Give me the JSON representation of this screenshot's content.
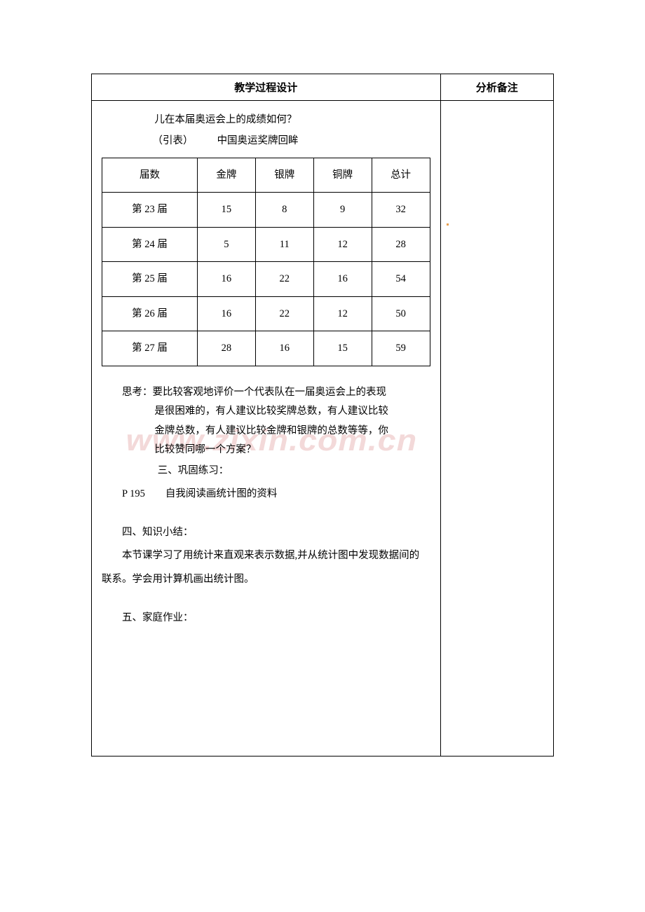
{
  "header": {
    "left": "教学过程设计",
    "right": "分析备注"
  },
  "intro": {
    "line1": "儿在本届奥运会上的成绩如何？",
    "yinbiao": "（引表）",
    "tableTitle": "中国奥运奖牌回眸"
  },
  "dataTable": {
    "columns": [
      "届数",
      "金牌",
      "银牌",
      "铜牌",
      "总计"
    ],
    "rows": [
      [
        "第 23 届",
        "15",
        "8",
        "9",
        "32"
      ],
      [
        "第 24 届",
        "5",
        "11",
        "12",
        "28"
      ],
      [
        "第 25 届",
        "16",
        "22",
        "16",
        "54"
      ],
      [
        "第 26 届",
        "16",
        "22",
        "12",
        "50"
      ],
      [
        "第 27 届",
        "28",
        "16",
        "15",
        "59"
      ]
    ]
  },
  "thinking": {
    "line1": "思考：要比较客观地评价一个代表队在一届奥运会上的表现",
    "line2": "是很困难的，有人建议比较奖牌总数，有人建议比较",
    "line3": "金牌总数，有人建议比较金牌和银牌的总数等等，你",
    "line4": "比较赞同哪一个方案？"
  },
  "section3": {
    "title": "三、巩固练习：",
    "ptext": "P 195　　自我阅读画统计图的资料"
  },
  "section4": {
    "title": "四、知识小结：",
    "text1": "本节课学习了用统计来直观来表示数据,并从统计图中发现数据间的",
    "text2": "联系。学会用计算机画出统计图。"
  },
  "section5": {
    "title": "五、家庭作业："
  },
  "watermark": "www.zixin.com.cn"
}
